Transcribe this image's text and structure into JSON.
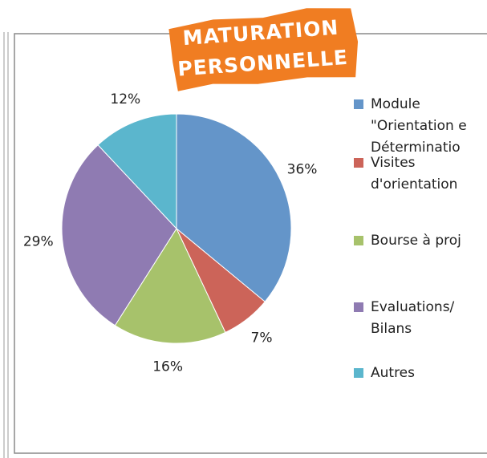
{
  "chart_data": {
    "type": "pie",
    "title_lines": [
      "MATURATION",
      "PERSONNELLE"
    ],
    "categories": [
      "Module\n\"Orientation e\nDéterminatio",
      "Visites\nd'orientation",
      "Bourse à proj",
      "Evaluations/\nBilans",
      "Autres"
    ],
    "values": [
      36,
      7,
      16,
      29,
      12
    ],
    "value_labels": [
      "36%",
      "7%",
      "16%",
      "29%",
      "12%"
    ],
    "colors": [
      "#6495c9",
      "#cc6459",
      "#a7c26b",
      "#8f7bb2",
      "#5bb6cd"
    ],
    "legend": "right"
  }
}
